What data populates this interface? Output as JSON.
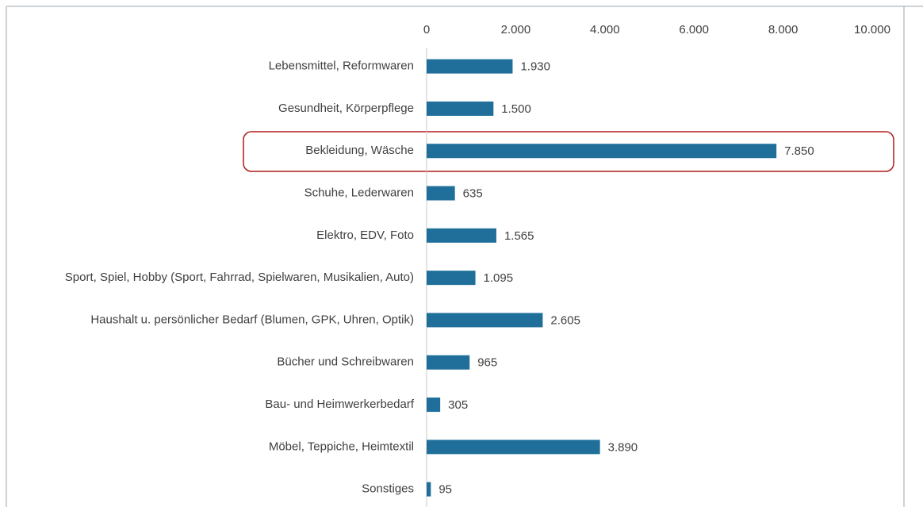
{
  "chart_data": {
    "type": "bar",
    "orientation": "horizontal",
    "categories": [
      "Lebensmittel, Reformwaren",
      "Gesundheit, Körperpflege",
      "Bekleidung, Wäsche",
      "Schuhe, Lederwaren",
      "Elektro, EDV, Foto",
      "Sport, Spiel, Hobby (Sport, Fahrrad, Spielwaren, Musikalien, Auto)",
      "Haushalt u. persönlicher Bedarf (Blumen, GPK, Uhren, Optik)",
      "Bücher und Schreibwaren",
      "Bau- und Heimwerkerbedarf",
      "Möbel, Teppiche, Heimtextil",
      "Sonstiges"
    ],
    "values": [
      1930,
      1500,
      7850,
      635,
      1565,
      1095,
      2605,
      965,
      305,
      3890,
      95
    ],
    "value_labels": [
      "1.930",
      "1.500",
      "7.850",
      "635",
      "1.565",
      "1.095",
      "2.605",
      "965",
      "305",
      "3.890",
      "95"
    ],
    "color": "#1f6f9a",
    "xlim": [
      0,
      10000
    ],
    "xticks": [
      0,
      {
        "value": 2000,
        "label": "2.000"
      },
      {
        "value": 4000,
        "label": "4.000"
      },
      {
        "value": 6000,
        "label": "6.000"
      },
      {
        "value": 8000,
        "label": "8.000"
      },
      {
        "value": 10000,
        "label": "10.000"
      }
    ],
    "grid": false
  }
}
